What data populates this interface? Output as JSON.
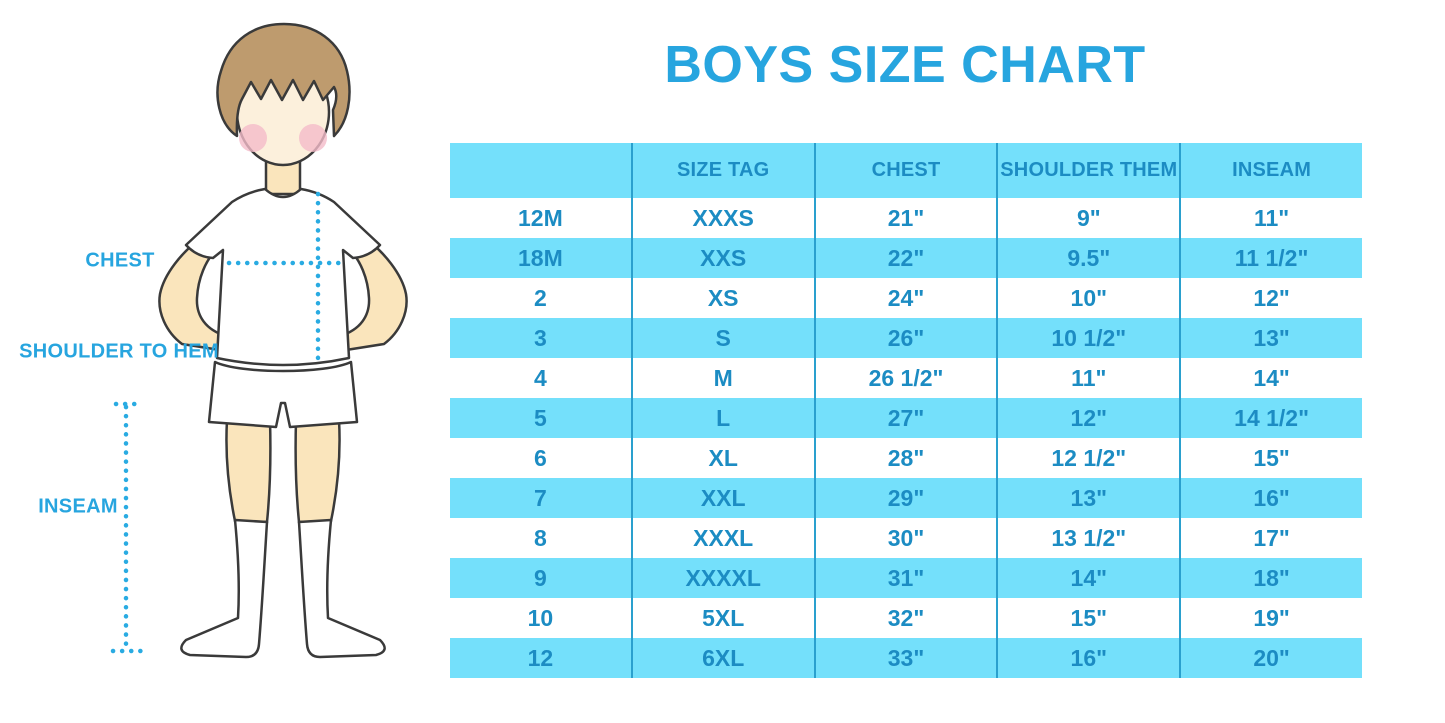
{
  "title": "BOYS SIZE CHART",
  "figure": {
    "illustration": "boy-standing-front-view",
    "labels": {
      "chest": "CHEST",
      "shoulder_to_hem": "SHOULDER TO HEM",
      "inseam": "INSEAM"
    },
    "colors": {
      "skin": "#FAE5BC",
      "face": "#FCF0DC",
      "hair": "#BE9B6E",
      "blush": "#F4BBC9",
      "outline": "#3A3A3A",
      "clothes": "#FFFFFF"
    }
  },
  "chart_data": {
    "type": "table",
    "title": "BOYS SIZE CHART",
    "columns": [
      "",
      "SIZE TAG",
      "CHEST",
      "SHOULDER THEM",
      "INSEAM"
    ],
    "rows": [
      [
        "12M",
        "XXXS",
        "21\"",
        "9\"",
        "11\""
      ],
      [
        "18M",
        "XXS",
        "22\"",
        "9.5\"",
        "11 1/2\""
      ],
      [
        "2",
        "XS",
        "24\"",
        "10\"",
        "12\""
      ],
      [
        "3",
        "S",
        "26\"",
        "10 1/2\"",
        "13\""
      ],
      [
        "4",
        "M",
        "26 1/2\"",
        "11\"",
        "14\""
      ],
      [
        "5",
        "L",
        "27\"",
        "12\"",
        "14 1/2\""
      ],
      [
        "6",
        "XL",
        "28\"",
        "12 1/2\"",
        "15\""
      ],
      [
        "7",
        "XXL",
        "29\"",
        "13\"",
        "16\""
      ],
      [
        "8",
        "XXXL",
        "30\"",
        "13 1/2\"",
        "17\""
      ],
      [
        "9",
        "XXXXL",
        "31\"",
        "14\"",
        "18\""
      ],
      [
        "10",
        "5XL",
        "32\"",
        "15\"",
        "19\""
      ],
      [
        "12",
        "6XL",
        "33\"",
        "16\"",
        "20\""
      ]
    ],
    "layout": {
      "row_striping": [
        "white",
        "light-blue"
      ],
      "header_background": "light-blue",
      "grid": "vertical-separators-only"
    }
  },
  "colors": {
    "title_blue": "#27A5DF",
    "table_text_blue": "#1C8CC3",
    "band_blue": "#74E0FB",
    "separator_blue": "#2AA0CE",
    "measure_line_blue": "#29ABE2"
  }
}
